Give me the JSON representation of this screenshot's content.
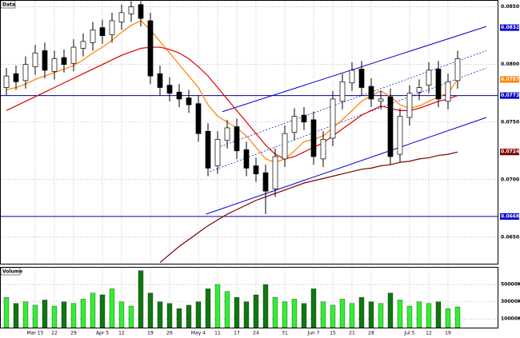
{
  "chart_data": {
    "type": "candlestick",
    "title": "Data",
    "volume_title": "Volume",
    "categories": [
      null,
      null,
      null,
      "Mar 15",
      null,
      "22",
      null,
      "29",
      null,
      null,
      "Apr 5",
      null,
      "12",
      null,
      null,
      "19",
      null,
      "26",
      null,
      null,
      "May 4",
      null,
      "11",
      null,
      "17",
      null,
      "24",
      null,
      null,
      "31",
      null,
      null,
      "Jun 7",
      null,
      "15",
      null,
      "21",
      null,
      "28",
      null,
      null,
      null,
      "Jul 5",
      null,
      "12",
      null,
      "19",
      null
    ],
    "open": [
      0.078,
      0.0792,
      0.0786,
      0.0798,
      0.0812,
      0.0794,
      0.0806,
      0.0801,
      0.0814,
      0.0819,
      0.0832,
      0.0826,
      0.0837,
      0.0844,
      0.0852,
      0.0838,
      0.0792,
      0.0782,
      0.0776,
      0.0771,
      0.0766,
      0.0742,
      0.0712,
      0.0734,
      0.0746,
      0.0726,
      0.0712,
      0.0706,
      0.0692,
      0.0718,
      0.0741,
      0.0756,
      0.0752,
      0.0718,
      0.0736,
      0.0768,
      0.0784,
      0.0796,
      0.0781,
      0.0768,
      0.0772,
      0.0722,
      0.0754,
      0.0776,
      0.0782,
      0.0796,
      0.0768,
      0.0786
    ],
    "high": [
      0.0797,
      0.0799,
      0.0807,
      0.0817,
      0.0819,
      0.0812,
      0.0813,
      0.0822,
      0.0827,
      0.0837,
      0.0839,
      0.0845,
      0.0852,
      0.0855,
      0.0855,
      0.0845,
      0.0799,
      0.0789,
      0.0783,
      0.0778,
      0.0773,
      0.0749,
      0.0742,
      0.0752,
      0.0753,
      0.0733,
      0.0719,
      0.0713,
      0.0727,
      0.0747,
      0.0762,
      0.0763,
      0.0759,
      0.0742,
      0.0777,
      0.0792,
      0.0802,
      0.0803,
      0.0788,
      0.0777,
      0.0779,
      0.0762,
      0.0782,
      0.0787,
      0.0802,
      0.0803,
      0.0792,
      0.0812
    ],
    "low": [
      0.0773,
      0.0778,
      0.0779,
      0.0791,
      0.0788,
      0.0787,
      0.0793,
      0.0794,
      0.0807,
      0.0812,
      0.0818,
      0.0819,
      0.083,
      0.0837,
      0.0833,
      0.0783,
      0.0773,
      0.0768,
      0.0763,
      0.0758,
      0.0733,
      0.0703,
      0.0705,
      0.0727,
      0.0718,
      0.0703,
      0.0698,
      0.067,
      0.0685,
      0.0711,
      0.0734,
      0.0743,
      0.0713,
      0.0711,
      0.0729,
      0.0761,
      0.0777,
      0.0773,
      0.0763,
      0.0761,
      0.0713,
      0.0715,
      0.0747,
      0.0769,
      0.0775,
      0.0763,
      0.0761,
      0.0779
    ],
    "close": [
      0.079,
      0.0785,
      0.08,
      0.081,
      0.0795,
      0.0805,
      0.08,
      0.0815,
      0.082,
      0.083,
      0.0825,
      0.0838,
      0.0845,
      0.085,
      0.084,
      0.079,
      0.078,
      0.0775,
      0.077,
      0.0765,
      0.074,
      0.071,
      0.0735,
      0.0745,
      0.0725,
      0.071,
      0.0705,
      0.069,
      0.072,
      0.074,
      0.0755,
      0.075,
      0.072,
      0.0735,
      0.077,
      0.0785,
      0.0795,
      0.078,
      0.077,
      0.077,
      0.072,
      0.0755,
      0.0775,
      0.078,
      0.0795,
      0.077,
      0.0785,
      0.0805
    ],
    "volume": [
      35000,
      28000,
      30000,
      26000,
      32000,
      25000,
      30000,
      28000,
      33000,
      40000,
      38000,
      45000,
      30000,
      25000,
      66000,
      40000,
      30000,
      28000,
      22000,
      26000,
      30000,
      45000,
      50000,
      42000,
      35000,
      30000,
      38000,
      50000,
      35000,
      30000,
      33000,
      28000,
      45000,
      30000,
      26000,
      33000,
      28000,
      35000,
      30000,
      28000,
      40000,
      32000,
      25000,
      30000,
      28000,
      30000,
      22000,
      24000
    ],
    "up_color": "#ffffff",
    "down_color": "#000000",
    "volume_up_color": "#33ee33",
    "volume_down_color": "#117711",
    "overlays": [
      {
        "color": "#ff7f00",
        "values": [
          0.0778,
          0.078,
          0.0783,
          0.0787,
          0.079,
          0.0793,
          0.0796,
          0.0799,
          0.0804,
          0.081,
          0.0815,
          0.0821,
          0.0828,
          0.0834,
          0.0838,
          0.083,
          0.082,
          0.081,
          0.08,
          0.079,
          0.078,
          0.0765,
          0.0755,
          0.075,
          0.0745,
          0.0738,
          0.0728,
          0.0718,
          0.0715,
          0.0718,
          0.0725,
          0.0733,
          0.0735,
          0.0738,
          0.0745,
          0.0752,
          0.076,
          0.0768,
          0.0773,
          0.0777,
          0.0772,
          0.0765,
          0.0762,
          0.0764,
          0.0768,
          0.0772,
          0.0775,
          0.0787
        ]
      },
      {
        "color": "#dd0000",
        "values": [
          0.076,
          0.0764,
          0.0768,
          0.0772,
          0.0776,
          0.078,
          0.0784,
          0.0788,
          0.0792,
          0.0796,
          0.08,
          0.0804,
          0.0808,
          0.0811,
          0.0814,
          0.0815,
          0.0815,
          0.0813,
          0.081,
          0.0805,
          0.0798,
          0.079,
          0.078,
          0.077,
          0.076,
          0.075,
          0.074,
          0.073,
          0.0722,
          0.0718,
          0.072,
          0.0724,
          0.0728,
          0.0732,
          0.0738,
          0.0744,
          0.075,
          0.0756,
          0.076,
          0.0764,
          0.0762,
          0.076,
          0.076,
          0.0762,
          0.0765,
          0.0768,
          0.077,
          0.0773
        ]
      },
      {
        "color": "#7a0000",
        "values": [
          null,
          null,
          null,
          null,
          null,
          null,
          null,
          null,
          null,
          null,
          null,
          null,
          null,
          null,
          null,
          null,
          0.0628,
          0.0635,
          0.0642,
          0.0648,
          0.0654,
          0.066,
          0.0665,
          0.067,
          0.0674,
          0.0678,
          0.0682,
          0.0685,
          0.0688,
          0.0691,
          0.0694,
          0.0697,
          0.0699,
          0.0701,
          0.0703,
          0.0705,
          0.0707,
          0.0709,
          0.071,
          0.0712,
          0.0713,
          0.0715,
          0.0716,
          0.0718,
          0.0719,
          0.0721,
          0.0722,
          0.0724
        ]
      }
    ],
    "trend_lines": [
      {
        "color": "#0000cc",
        "dashed": false,
        "from": [
          22.5,
          0.0759
        ],
        "to": [
          50,
          0.0833
        ]
      },
      {
        "color": "#0000cc",
        "dashed": true,
        "from": [
          22,
          0.0728
        ],
        "to": [
          50,
          0.0812
        ]
      },
      {
        "color": "#0000cc",
        "dashed": true,
        "from": [
          21.2,
          0.0707
        ],
        "to": [
          50,
          0.0797
        ]
      },
      {
        "color": "#0000cc",
        "dashed": false,
        "from": [
          20.8,
          0.067
        ],
        "to": [
          50,
          0.0754
        ]
      }
    ],
    "hlines": [
      {
        "value": 0.0773,
        "color": "#000099"
      },
      {
        "value": 0.0668,
        "color": "#000099"
      }
    ],
    "price_markers": [
      {
        "value": 0.0832,
        "label": "0.0832",
        "color": "#0000cc"
      },
      {
        "value": 0.0787,
        "label": "0.0787",
        "color": "#ff7f00"
      },
      {
        "value": 0.0773,
        "label": "0.0773",
        "color": "#0000cc"
      },
      {
        "value": 0.0724,
        "label": "0.0724",
        "color": "#7a0000"
      },
      {
        "value": 0.0668,
        "label": "0.0668",
        "color": "#0000cc"
      }
    ],
    "ylim": [
      0.0627,
      0.0856
    ],
    "yticks": [
      {
        "value": 0.065,
        "label": "0.0650"
      },
      {
        "value": 0.07,
        "label": "0.0700"
      },
      {
        "value": 0.075,
        "label": "0.0750"
      },
      {
        "value": 0.08,
        "label": "0.0800"
      },
      {
        "value": 0.085,
        "label": "0.0850"
      }
    ],
    "volume_ylim": [
      0,
      66700
    ],
    "volume_yticks": [
      {
        "value": 10000,
        "label": "10000K"
      },
      {
        "value": 30000,
        "label": "30000K"
      },
      {
        "value": 50000,
        "label": "50000K"
      }
    ],
    "grid": true
  }
}
